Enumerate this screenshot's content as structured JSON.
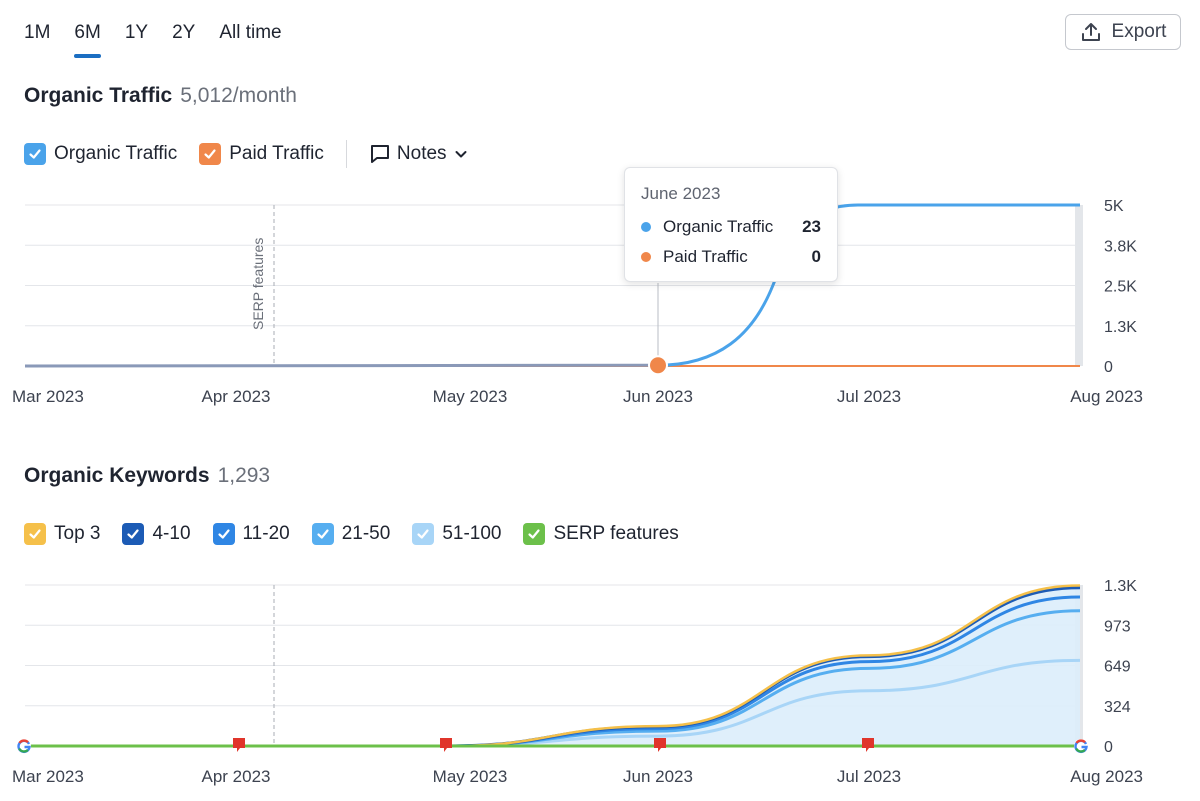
{
  "header": {
    "range_tabs": [
      {
        "label": "1M",
        "active": false
      },
      {
        "label": "6M",
        "active": true
      },
      {
        "label": "1Y",
        "active": false
      },
      {
        "label": "2Y",
        "active": false
      },
      {
        "label": "All time",
        "active": false
      }
    ],
    "export_label": "Export"
  },
  "traffic_section": {
    "title": "Organic Traffic",
    "value": "5,012/month",
    "legend": [
      {
        "label": "Organic Traffic",
        "color": "#4aa3ea",
        "checked": true
      },
      {
        "label": "Paid Traffic",
        "color": "#f0874a",
        "checked": true
      }
    ],
    "notes_label": "Notes",
    "annotation_label": "SERP features",
    "tooltip": {
      "title": "June 2023",
      "rows": [
        {
          "label": "Organic Traffic",
          "value": "23",
          "color": "#4aa3ea"
        },
        {
          "label": "Paid Traffic",
          "value": "0",
          "color": "#f0874a"
        }
      ]
    }
  },
  "keywords_section": {
    "title": "Organic Keywords",
    "value": "1,293",
    "legend": [
      {
        "label": "Top 3",
        "color": "#f5c04a",
        "checked": true
      },
      {
        "label": "4-10",
        "color": "#1c5bb5",
        "checked": true
      },
      {
        "label": "11-20",
        "color": "#2f86e4",
        "checked": true
      },
      {
        "label": "21-50",
        "color": "#56aef0",
        "checked": true
      },
      {
        "label": "51-100",
        "color": "#a8d5f7",
        "checked": true
      },
      {
        "label": "SERP features",
        "color": "#6cc04a",
        "checked": true
      }
    ]
  },
  "chart_data": [
    {
      "type": "line",
      "x_labels": [
        "Mar 2023",
        "Apr 2023",
        "May 2023",
        "Jun 2023",
        "Jul 2023",
        "Aug 2023"
      ],
      "x": [
        0,
        1,
        2,
        3,
        4,
        5
      ],
      "y_ticks": [
        "5K",
        "3.8K",
        "2.5K",
        "1.3K",
        "0"
      ],
      "ylim": [
        0,
        5012
      ],
      "series": [
        {
          "name": "Organic Traffic",
          "color": "#4aa3ea",
          "values": [
            0,
            0,
            0,
            23,
            5012,
            5012
          ]
        },
        {
          "name": "Paid Traffic",
          "color": "#f0874a",
          "values": [
            0,
            0,
            0,
            0,
            0,
            0
          ]
        }
      ],
      "highlight_index": 3,
      "grid": true
    },
    {
      "type": "area",
      "stacked": true,
      "x_labels": [
        "Mar 2023",
        "Apr 2023",
        "May 2023",
        "Jun 2023",
        "Jul 2023",
        "Aug 2023"
      ],
      "x": [
        0,
        1,
        2,
        3,
        4,
        5
      ],
      "y_ticks": [
        "1.3K",
        "973",
        "649",
        "324",
        "0"
      ],
      "ylim": [
        0,
        1297
      ],
      "series": [
        {
          "name": "51-100",
          "color": "#a8d5f7",
          "values": [
            0,
            0,
            0,
            80,
            445,
            690
          ]
        },
        {
          "name": "21-50",
          "color": "#56aef0",
          "values": [
            0,
            0,
            0,
            40,
            180,
            400
          ]
        },
        {
          "name": "11-20",
          "color": "#2f86e4",
          "values": [
            0,
            0,
            0,
            20,
            55,
            110
          ]
        },
        {
          "name": "4-10",
          "color": "#1c5bb5",
          "values": [
            0,
            0,
            0,
            15,
            40,
            75
          ]
        },
        {
          "name": "Top 3",
          "color": "#f5c04a",
          "values": [
            0,
            0,
            0,
            5,
            10,
            18
          ]
        }
      ],
      "serp_features_values": [
        0,
        0,
        0,
        0,
        0,
        0
      ],
      "grid": true
    }
  ]
}
